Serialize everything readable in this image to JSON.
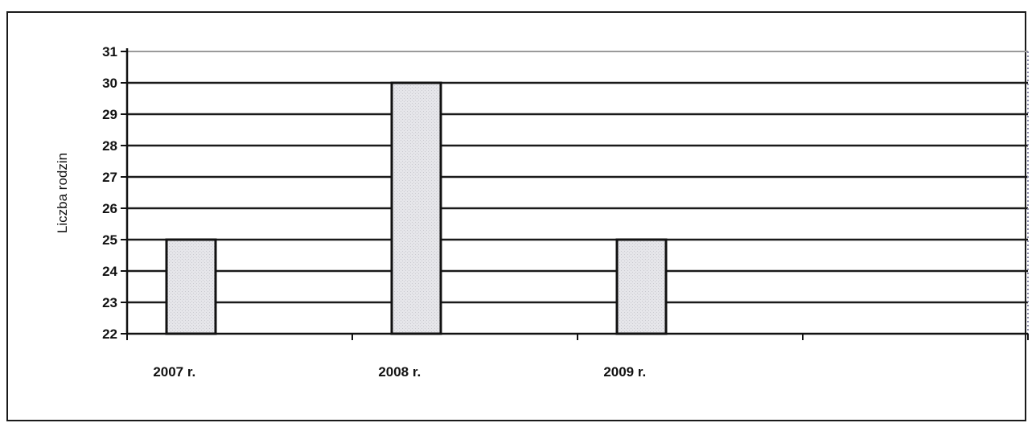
{
  "chart_data": {
    "type": "bar",
    "categories": [
      "2007 r.",
      "2008 r.",
      "2009 r.",
      ""
    ],
    "values": [
      25,
      30,
      25,
      null
    ],
    "title": "",
    "xlabel": "",
    "ylabel": "Liczba rodzin",
    "ylim": [
      22,
      31
    ],
    "yticks": [
      22,
      23,
      24,
      25,
      26,
      27,
      28,
      29,
      30,
      31
    ],
    "grid": true,
    "legend": "none",
    "colors": {
      "bar_fill": "#e6e6ea",
      "bar_stroke": "#111111",
      "grid": "#1a1a1a",
      "top_grid": "#9a9a9a"
    }
  }
}
